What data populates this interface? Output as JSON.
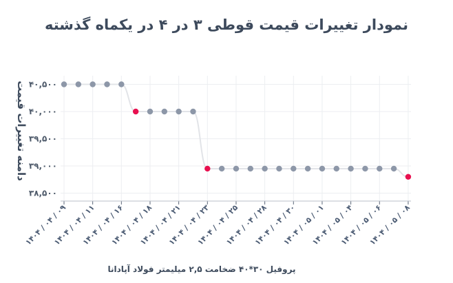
{
  "chart_data": {
    "type": "line",
    "title": "نمودار تغییرات قیمت قوطی ۳ در ۴ در یکماه گذشته",
    "xlabel": "پروفیل ۳۰*۴۰ ضخامت ۲,۵ میلیمتر فولاد آپادانا",
    "ylabel": "دامنه تغییرات قیمت",
    "ylim": [
      38400,
      40600
    ],
    "yticks": [
      40500,
      40000,
      39500,
      39000,
      38500
    ],
    "ytick_labels": [
      "۴۰,۵۰۰",
      "۴۰,۰۰۰",
      "۳۹,۵۰۰",
      "۳۹,۰۰۰",
      "۳۸,۵۰۰"
    ],
    "x_tick_labels": [
      "۱۴۰۴ / ۰۴ / ۰۹",
      "۱۴۰۴ / ۰۴ / ۱۱",
      "۱۴۰۴ / ۰۴ / ۱۶",
      "۱۴۰۴ / ۰۴ / ۱۸",
      "۱۴۰۴ / ۰۴ / ۲۱",
      "۱۴۰۴ / ۰۴ / ۲۳",
      "۱۴۰۴ / ۰۴ / ۲۵",
      "۱۴۰۴ / ۰۴ / ۲۸",
      "۱۴۰۴ / ۰۴ / ۳۰",
      "۱۴۰۴ / ۰۵ / ۰۱",
      "۱۴۰۴ / ۰۵ / ۰۴",
      "۱۴۰۴ / ۰۵ / ۰۶",
      "۱۴۰۴ / ۰۵ / ۰۸"
    ],
    "values": [
      40500,
      40500,
      40500,
      40500,
      40500,
      40000,
      40000,
      40000,
      40000,
      40000,
      38950,
      38950,
      38950,
      38950,
      38950,
      38950,
      38950,
      38950,
      38950,
      38950,
      38950,
      38950,
      38950,
      38950,
      38800
    ],
    "highlight_indices": [
      5,
      10,
      24
    ],
    "grid": true,
    "colors": {
      "point": "#8d97a8",
      "highlight": "#e8104f",
      "line": "#e2e4e8",
      "grid": "#eceef1",
      "axis": "#5a6577"
    }
  }
}
